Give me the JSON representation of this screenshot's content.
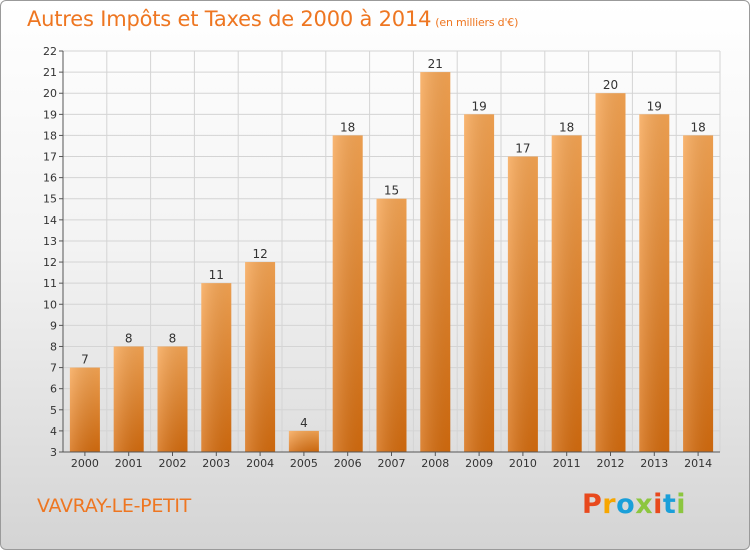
{
  "header": {
    "title": "Autres Impôts et Taxes de 2000 à 2014",
    "subtitle": "(en milliers d'€)"
  },
  "footer": {
    "commune": "VAVRAY-LE-PETIT",
    "brand": "Proxiti",
    "brand_colors": [
      "#e8491d",
      "#f7a600",
      "#1a9fd9",
      "#8cc63f",
      "#e8491d",
      "#1a9fd9",
      "#8cc63f"
    ]
  },
  "colors": {
    "accent": "#ee7621",
    "bar_light": "#f5a24f",
    "bar_dark": "#d86e10"
  },
  "chart_data": {
    "type": "bar",
    "title": "Autres Impôts et Taxes de 2000 à 2014",
    "subtitle": "(en milliers d'€)",
    "categories": [
      "2000",
      "2001",
      "2002",
      "2003",
      "2004",
      "2005",
      "2006",
      "2007",
      "2008",
      "2009",
      "2010",
      "2011",
      "2012",
      "2013",
      "2014"
    ],
    "values": [
      7,
      8,
      8,
      11,
      12,
      4,
      18,
      15,
      21,
      19,
      17,
      18,
      20,
      19,
      18
    ],
    "ylim": [
      3,
      22
    ],
    "yticks": [
      3,
      4,
      5,
      6,
      7,
      8,
      9,
      10,
      11,
      12,
      13,
      14,
      15,
      16,
      17,
      18,
      19,
      20,
      21,
      22
    ],
    "grid": true,
    "xlabel": "",
    "ylabel": ""
  }
}
